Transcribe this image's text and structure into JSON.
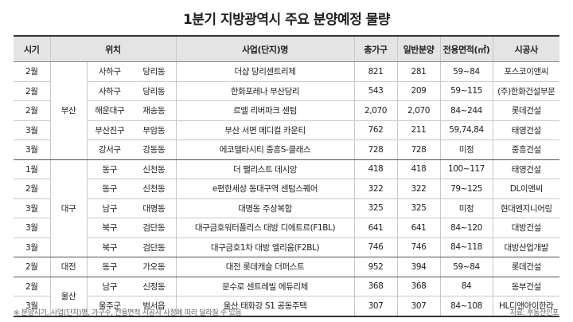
{
  "title": "1분기 지방광역시 주요 분양예정 물량",
  "headers": {
    "period": "시기",
    "location": "위치",
    "project": "사업(단지)명",
    "total": "총가구",
    "general": "일반분양",
    "area": "전용면적(㎡)",
    "builder": "시공사"
  },
  "groups": [
    {
      "region": "부산",
      "rows": [
        {
          "month": "2월",
          "gu": "사하구",
          "dong": "당리동",
          "project": "더샵 당리센트리체",
          "total": "821",
          "general": "281",
          "area": "59~84",
          "builder": "포스코이앤씨"
        },
        {
          "month": "2월",
          "gu": "사하구",
          "dong": "당리동",
          "project": "한화포레나 부산당리",
          "total": "543",
          "general": "209",
          "area": "59~115",
          "builder": "(주)한화건설부문"
        },
        {
          "month": "2월",
          "gu": "해운대구",
          "dong": "재송동",
          "project": "르엘 리버파크 센텀",
          "total": "2,070",
          "general": "2,070",
          "area": "84~244",
          "builder": "롯데건설"
        },
        {
          "month": "3월",
          "gu": "부산진구",
          "dong": "부암동",
          "project": "부산 서면 메디컬 카운티",
          "total": "762",
          "general": "211",
          "area": "59,74,84",
          "builder": "태영건설"
        },
        {
          "month": "3월",
          "gu": "강서구",
          "dong": "강동동",
          "project": "에코델타시티 중흥S-클래스",
          "total": "728",
          "general": "728",
          "area": "미정",
          "builder": "중흥건설"
        }
      ]
    },
    {
      "region": "대구",
      "rows": [
        {
          "month": "1월",
          "gu": "동구",
          "dong": "신천동",
          "project": "더 팰리스트 데시앙",
          "total": "418",
          "general": "418",
          "area": "100~117",
          "builder": "태영건설"
        },
        {
          "month": "2월",
          "gu": "동구",
          "dong": "신천동",
          "project": "e편한세상 동대구역 센텀스퀘어",
          "total": "322",
          "general": "322",
          "area": "79~125",
          "builder": "DL이앤씨"
        },
        {
          "month": "3월",
          "gu": "남구",
          "dong": "대명동",
          "project": "대명동 주상복합",
          "total": "325",
          "general": "325",
          "area": "미정",
          "builder": "현대엔지니어링"
        },
        {
          "month": "3월",
          "gu": "북구",
          "dong": "검단동",
          "project": "대구금호워터폴리스 대방 디에트르(F1BL)",
          "total": "641",
          "general": "641",
          "area": "84~120",
          "builder": "대방건설"
        },
        {
          "month": "3월",
          "gu": "북구",
          "dong": "검단동",
          "project": "대구금호1차 대방 엘리움(F2BL)",
          "total": "746",
          "general": "746",
          "area": "84~118",
          "builder": "대방산업개발"
        }
      ]
    },
    {
      "region": "대전",
      "rows": [
        {
          "month": "2월",
          "gu": "동구",
          "dong": "가오동",
          "project": "대전 롯데캐슬 더퍼스트",
          "total": "952",
          "general": "394",
          "area": "59~84",
          "builder": "롯데건설"
        }
      ]
    },
    {
      "region": "울산",
      "rows": [
        {
          "month": "2월",
          "gu": "남구",
          "dong": "신정동",
          "project": "문수로 센트레빌 에듀리체",
          "total": "368",
          "general": "368",
          "area": "84",
          "builder": "동부건설"
        },
        {
          "month": "3월",
          "gu": "울주군",
          "dong": "범서읍",
          "project": "울산 태화강 S1 공동주택",
          "total": "307",
          "general": "307",
          "area": "84~108",
          "builder": "HL디앤아이한라"
        }
      ]
    }
  ],
  "footnote": "※ 분양시기, 사업(단지)명, 가구수, 전용면적 시공사 사정에 따라 달라질 수 있음",
  "source": "자료: 부동산인포"
}
